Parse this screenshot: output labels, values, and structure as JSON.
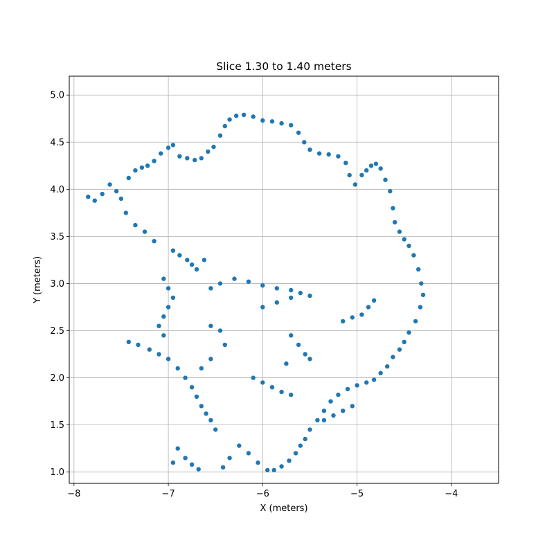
{
  "chart_data": {
    "type": "scatter",
    "title": "Slice 1.30 to 1.40 meters",
    "xlabel": "X (meters)",
    "ylabel": "Y (meters)",
    "xlim": [
      -8.05,
      -3.5
    ],
    "ylim": [
      0.88,
      5.2
    ],
    "xticks": [
      -8,
      -7,
      -6,
      -5,
      -4
    ],
    "yticks": [
      1.0,
      1.5,
      2.0,
      2.5,
      3.0,
      3.5,
      4.0,
      4.5,
      5.0
    ],
    "xtick_labels": [
      "−8",
      "−7",
      "−6",
      "−5",
      "−4"
    ],
    "ytick_labels": [
      "1.0",
      "1.5",
      "2.0",
      "2.5",
      "3.0",
      "3.5",
      "4.0",
      "4.5",
      "5.0"
    ],
    "grid": true,
    "marker_color": "#1f77b4",
    "series": [
      {
        "name": "",
        "color": "#1f77b4",
        "points": [
          [
            -7.85,
            3.92
          ],
          [
            -7.78,
            3.88
          ],
          [
            -7.7,
            3.95
          ],
          [
            -7.62,
            4.05
          ],
          [
            -7.55,
            3.98
          ],
          [
            -7.5,
            3.9
          ],
          [
            -7.42,
            4.12
          ],
          [
            -7.35,
            4.2
          ],
          [
            -7.28,
            4.23
          ],
          [
            -7.22,
            4.25
          ],
          [
            -7.15,
            4.3
          ],
          [
            -7.08,
            4.38
          ],
          [
            -7.0,
            4.44
          ],
          [
            -6.95,
            4.47
          ],
          [
            -6.88,
            4.35
          ],
          [
            -6.8,
            4.33
          ],
          [
            -6.72,
            4.31
          ],
          [
            -6.65,
            4.33
          ],
          [
            -6.58,
            4.4
          ],
          [
            -6.52,
            4.45
          ],
          [
            -6.45,
            4.57
          ],
          [
            -6.4,
            4.67
          ],
          [
            -6.35,
            4.74
          ],
          [
            -6.28,
            4.78
          ],
          [
            -6.2,
            4.79
          ],
          [
            -6.1,
            4.77
          ],
          [
            -6.0,
            4.73
          ],
          [
            -5.9,
            4.72
          ],
          [
            -5.8,
            4.7
          ],
          [
            -5.7,
            4.68
          ],
          [
            -5.62,
            4.6
          ],
          [
            -5.56,
            4.5
          ],
          [
            -5.5,
            4.42
          ],
          [
            -5.4,
            4.38
          ],
          [
            -5.3,
            4.37
          ],
          [
            -5.2,
            4.35
          ],
          [
            -5.12,
            4.28
          ],
          [
            -5.08,
            4.15
          ],
          [
            -5.02,
            4.05
          ],
          [
            -4.95,
            4.15
          ],
          [
            -4.9,
            4.2
          ],
          [
            -4.85,
            4.25
          ],
          [
            -4.8,
            4.27
          ],
          [
            -4.75,
            4.22
          ],
          [
            -4.7,
            4.1
          ],
          [
            -4.65,
            3.98
          ],
          [
            -4.62,
            3.8
          ],
          [
            -4.6,
            3.65
          ],
          [
            -4.55,
            3.55
          ],
          [
            -4.5,
            3.47
          ],
          [
            -4.45,
            3.4
          ],
          [
            -4.4,
            3.3
          ],
          [
            -4.35,
            3.15
          ],
          [
            -4.32,
            3.0
          ],
          [
            -4.3,
            2.88
          ],
          [
            -4.33,
            2.75
          ],
          [
            -4.38,
            2.6
          ],
          [
            -4.45,
            2.48
          ],
          [
            -4.5,
            2.38
          ],
          [
            -4.55,
            2.3
          ],
          [
            -4.62,
            2.22
          ],
          [
            -4.68,
            2.12
          ],
          [
            -4.75,
            2.05
          ],
          [
            -4.82,
            1.98
          ],
          [
            -4.9,
            1.95
          ],
          [
            -5.0,
            1.92
          ],
          [
            -5.1,
            1.88
          ],
          [
            -5.2,
            1.82
          ],
          [
            -5.28,
            1.75
          ],
          [
            -5.35,
            1.65
          ],
          [
            -5.42,
            1.55
          ],
          [
            -5.5,
            1.45
          ],
          [
            -5.55,
            1.35
          ],
          [
            -5.6,
            1.28
          ],
          [
            -5.65,
            1.2
          ],
          [
            -5.72,
            1.12
          ],
          [
            -5.8,
            1.06
          ],
          [
            -5.88,
            1.02
          ],
          [
            -5.95,
            1.02
          ],
          [
            -6.05,
            1.1
          ],
          [
            -6.15,
            1.2
          ],
          [
            -6.25,
            1.28
          ],
          [
            -6.35,
            1.15
          ],
          [
            -6.42,
            1.05
          ],
          [
            -6.5,
            1.45
          ],
          [
            -6.55,
            1.55
          ],
          [
            -6.6,
            1.62
          ],
          [
            -6.65,
            1.7
          ],
          [
            -6.7,
            1.8
          ],
          [
            -6.75,
            1.9
          ],
          [
            -6.82,
            2.0
          ],
          [
            -6.9,
            2.1
          ],
          [
            -7.0,
            2.2
          ],
          [
            -7.1,
            2.25
          ],
          [
            -7.2,
            2.3
          ],
          [
            -7.32,
            2.35
          ],
          [
            -7.42,
            2.38
          ],
          [
            -7.05,
            2.45
          ],
          [
            -7.1,
            2.55
          ],
          [
            -7.05,
            2.65
          ],
          [
            -7.0,
            2.75
          ],
          [
            -6.95,
            2.85
          ],
          [
            -7.0,
            2.95
          ],
          [
            -7.05,
            3.05
          ],
          [
            -6.95,
            3.35
          ],
          [
            -6.88,
            3.3
          ],
          [
            -6.8,
            3.25
          ],
          [
            -6.75,
            3.2
          ],
          [
            -6.7,
            3.15
          ],
          [
            -6.62,
            3.25
          ],
          [
            -7.15,
            3.45
          ],
          [
            -7.25,
            3.55
          ],
          [
            -7.35,
            3.62
          ],
          [
            -7.45,
            3.75
          ],
          [
            -6.55,
            2.95
          ],
          [
            -6.45,
            3.0
          ],
          [
            -6.3,
            3.05
          ],
          [
            -6.15,
            3.02
          ],
          [
            -6.0,
            2.98
          ],
          [
            -5.85,
            2.95
          ],
          [
            -5.7,
            2.93
          ],
          [
            -5.6,
            2.9
          ],
          [
            -5.5,
            2.87
          ],
          [
            -5.7,
            2.85
          ],
          [
            -5.85,
            2.8
          ],
          [
            -6.0,
            2.75
          ],
          [
            -5.15,
            2.6
          ],
          [
            -5.05,
            2.64
          ],
          [
            -4.95,
            2.67
          ],
          [
            -4.88,
            2.75
          ],
          [
            -4.82,
            2.82
          ],
          [
            -6.55,
            2.55
          ],
          [
            -6.45,
            2.5
          ],
          [
            -6.4,
            2.35
          ],
          [
            -6.55,
            2.2
          ],
          [
            -6.65,
            2.1
          ],
          [
            -5.7,
            2.45
          ],
          [
            -5.62,
            2.35
          ],
          [
            -5.55,
            2.25
          ],
          [
            -5.5,
            2.2
          ],
          [
            -5.75,
            2.15
          ],
          [
            -6.1,
            2.0
          ],
          [
            -6.0,
            1.95
          ],
          [
            -5.9,
            1.9
          ],
          [
            -5.8,
            1.85
          ],
          [
            -5.7,
            1.82
          ],
          [
            -6.9,
            1.25
          ],
          [
            -6.82,
            1.15
          ],
          [
            -6.75,
            1.08
          ],
          [
            -6.68,
            1.03
          ],
          [
            -6.95,
            1.1
          ],
          [
            -5.35,
            1.55
          ],
          [
            -5.25,
            1.6
          ],
          [
            -5.15,
            1.65
          ],
          [
            -5.05,
            1.7
          ]
        ]
      }
    ]
  }
}
